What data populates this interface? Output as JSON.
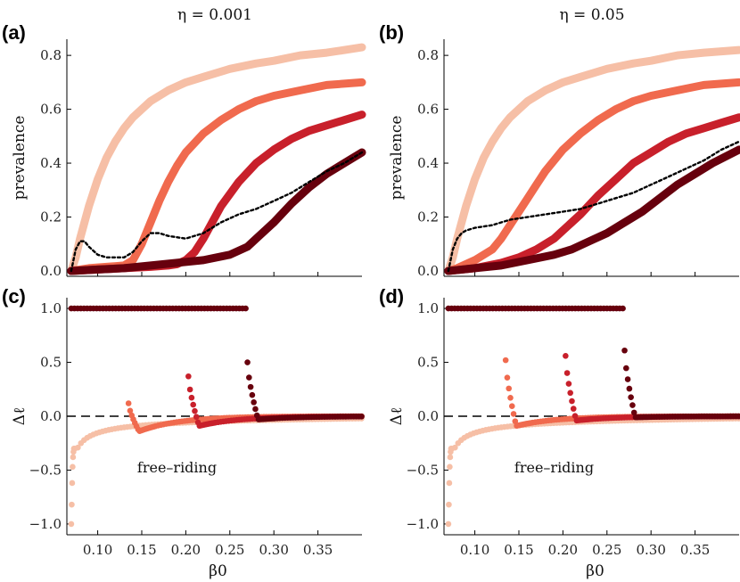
{
  "figure": {
    "columns": [
      {
        "title": "η = 0.001"
      },
      {
        "title": "η = 0.05"
      }
    ]
  },
  "palette": {
    "light": "#f6bfa6",
    "medium": "#f06a4e",
    "red": "#c8202b",
    "dark": "#67000d",
    "eq_line": "#000000"
  },
  "chart_data": [
    {
      "panel": "(a)",
      "type": "line",
      "column_title": "η = 0.001",
      "ylabel": "prevalence",
      "xlabel": "",
      "xlim": [
        0.065,
        0.4
      ],
      "ylim": [
        -0.02,
        0.86
      ],
      "yticks": [
        0.0,
        0.2,
        0.4,
        0.6,
        0.8
      ],
      "ytick_labels": [
        "0.0",
        "0.2",
        "0.4",
        "0.6",
        "0.8"
      ],
      "xticks": [
        0.1,
        0.15,
        0.2,
        0.25,
        0.3,
        0.35
      ],
      "show_xtick_labels": false,
      "series": [
        {
          "color": "light",
          "style": "thick",
          "x": [
            0.07,
            0.075,
            0.08,
            0.09,
            0.1,
            0.11,
            0.12,
            0.13,
            0.14,
            0.15,
            0.16,
            0.18,
            0.2,
            0.22,
            0.25,
            0.28,
            0.3,
            0.33,
            0.36,
            0.4
          ],
          "y": [
            0.0,
            0.05,
            0.12,
            0.24,
            0.34,
            0.42,
            0.48,
            0.53,
            0.57,
            0.6,
            0.63,
            0.67,
            0.7,
            0.72,
            0.75,
            0.77,
            0.78,
            0.8,
            0.81,
            0.83
          ]
        },
        {
          "color": "medium",
          "style": "thick",
          "x": [
            0.07,
            0.09,
            0.11,
            0.13,
            0.14,
            0.15,
            0.16,
            0.17,
            0.18,
            0.19,
            0.2,
            0.22,
            0.24,
            0.26,
            0.28,
            0.3,
            0.33,
            0.36,
            0.4
          ],
          "y": [
            0.0,
            0.01,
            0.015,
            0.02,
            0.04,
            0.1,
            0.18,
            0.26,
            0.33,
            0.39,
            0.44,
            0.51,
            0.56,
            0.6,
            0.63,
            0.65,
            0.67,
            0.69,
            0.7
          ]
        },
        {
          "color": "red",
          "style": "thick",
          "x": [
            0.07,
            0.1,
            0.13,
            0.16,
            0.18,
            0.19,
            0.2,
            0.21,
            0.22,
            0.23,
            0.24,
            0.26,
            0.28,
            0.3,
            0.32,
            0.34,
            0.36,
            0.38,
            0.4
          ],
          "y": [
            0.0,
            0.005,
            0.01,
            0.015,
            0.02,
            0.025,
            0.04,
            0.07,
            0.12,
            0.18,
            0.24,
            0.33,
            0.4,
            0.45,
            0.49,
            0.52,
            0.54,
            0.56,
            0.58
          ]
        },
        {
          "color": "dark",
          "style": "thick",
          "x": [
            0.07,
            0.1,
            0.13,
            0.16,
            0.19,
            0.22,
            0.25,
            0.27,
            0.28,
            0.3,
            0.32,
            0.34,
            0.36,
            0.38,
            0.4
          ],
          "y": [
            0.0,
            0.005,
            0.01,
            0.02,
            0.03,
            0.04,
            0.06,
            0.09,
            0.12,
            0.18,
            0.25,
            0.31,
            0.36,
            0.4,
            0.44
          ]
        },
        {
          "color": "eq_line",
          "style": "dotted",
          "x": [
            0.07,
            0.075,
            0.08,
            0.085,
            0.09,
            0.1,
            0.11,
            0.12,
            0.13,
            0.14,
            0.15,
            0.16,
            0.17,
            0.18,
            0.2,
            0.22,
            0.24,
            0.26,
            0.28,
            0.3,
            0.32,
            0.34,
            0.36,
            0.38,
            0.4
          ],
          "y": [
            0.0,
            0.08,
            0.11,
            0.11,
            0.09,
            0.06,
            0.05,
            0.05,
            0.05,
            0.07,
            0.11,
            0.14,
            0.14,
            0.13,
            0.12,
            0.14,
            0.18,
            0.21,
            0.23,
            0.26,
            0.29,
            0.33,
            0.37,
            0.4,
            0.44
          ]
        }
      ]
    },
    {
      "panel": "(b)",
      "type": "line",
      "column_title": "η = 0.05",
      "ylabel": "prevalence",
      "xlabel": "",
      "xlim": [
        0.065,
        0.4
      ],
      "ylim": [
        -0.02,
        0.86
      ],
      "yticks": [
        0.0,
        0.2,
        0.4,
        0.6,
        0.8
      ],
      "ytick_labels": [
        "0.0",
        "0.2",
        "0.4",
        "0.6",
        "0.8"
      ],
      "xticks": [
        0.1,
        0.15,
        0.2,
        0.25,
        0.3,
        0.35
      ],
      "show_xtick_labels": false,
      "series": [
        {
          "color": "light",
          "style": "thick",
          "x": [
            0.07,
            0.075,
            0.08,
            0.09,
            0.1,
            0.11,
            0.12,
            0.13,
            0.14,
            0.15,
            0.16,
            0.18,
            0.2,
            0.22,
            0.25,
            0.28,
            0.3,
            0.33,
            0.36,
            0.4
          ],
          "y": [
            0.0,
            0.05,
            0.12,
            0.24,
            0.34,
            0.42,
            0.48,
            0.53,
            0.57,
            0.6,
            0.63,
            0.67,
            0.7,
            0.72,
            0.75,
            0.77,
            0.78,
            0.8,
            0.81,
            0.82
          ]
        },
        {
          "color": "medium",
          "style": "thick",
          "x": [
            0.07,
            0.08,
            0.1,
            0.12,
            0.13,
            0.14,
            0.15,
            0.16,
            0.17,
            0.18,
            0.2,
            0.22,
            0.24,
            0.26,
            0.28,
            0.3,
            0.33,
            0.36,
            0.4
          ],
          "y": [
            0.0,
            0.01,
            0.04,
            0.08,
            0.12,
            0.17,
            0.22,
            0.27,
            0.32,
            0.37,
            0.45,
            0.51,
            0.56,
            0.6,
            0.63,
            0.65,
            0.67,
            0.69,
            0.7
          ]
        },
        {
          "color": "red",
          "style": "thick",
          "x": [
            0.07,
            0.1,
            0.13,
            0.15,
            0.17,
            0.19,
            0.2,
            0.21,
            0.22,
            0.24,
            0.26,
            0.28,
            0.3,
            0.32,
            0.34,
            0.36,
            0.38,
            0.4
          ],
          "y": [
            0.0,
            0.01,
            0.03,
            0.05,
            0.08,
            0.12,
            0.15,
            0.18,
            0.21,
            0.28,
            0.34,
            0.4,
            0.44,
            0.48,
            0.51,
            0.53,
            0.55,
            0.57
          ]
        },
        {
          "color": "dark",
          "style": "thick",
          "x": [
            0.07,
            0.1,
            0.13,
            0.16,
            0.19,
            0.21,
            0.23,
            0.25,
            0.27,
            0.29,
            0.31,
            0.33,
            0.35,
            0.37,
            0.4
          ],
          "y": [
            0.0,
            0.01,
            0.02,
            0.04,
            0.06,
            0.08,
            0.11,
            0.14,
            0.18,
            0.22,
            0.27,
            0.32,
            0.36,
            0.4,
            0.45
          ]
        },
        {
          "color": "eq_line",
          "style": "dotted",
          "x": [
            0.07,
            0.075,
            0.08,
            0.085,
            0.09,
            0.1,
            0.12,
            0.14,
            0.16,
            0.18,
            0.2,
            0.22,
            0.24,
            0.26,
            0.28,
            0.3,
            0.32,
            0.34,
            0.36,
            0.38,
            0.4
          ],
          "y": [
            0.0,
            0.08,
            0.12,
            0.14,
            0.15,
            0.16,
            0.17,
            0.19,
            0.2,
            0.21,
            0.22,
            0.23,
            0.25,
            0.27,
            0.29,
            0.32,
            0.35,
            0.38,
            0.41,
            0.45,
            0.48
          ]
        }
      ]
    },
    {
      "panel": "(c)",
      "type": "scatter",
      "ylabel": "Δℓ",
      "xlabel": "β0",
      "xlim": [
        0.065,
        0.4
      ],
      "ylim": [
        -1.1,
        1.1
      ],
      "yticks": [
        -1.0,
        -0.5,
        0.0,
        0.5,
        1.0
      ],
      "ytick_labels": [
        "−1.0",
        "−0.5",
        "0.0",
        "0.5",
        "1.0"
      ],
      "xticks": [
        0.1,
        0.15,
        0.2,
        0.25,
        0.3,
        0.35
      ],
      "xtick_labels": [
        "0.10",
        "0.15",
        "0.20",
        "0.25",
        "0.30",
        "0.35"
      ],
      "reference_line_y": 0.0,
      "annotation": {
        "text": "free–riding",
        "x": 0.19,
        "y": -0.48
      },
      "top_line": {
        "color": "dark",
        "y": 1.0,
        "x_from": 0.07,
        "x_to": 0.27
      },
      "series": [
        {
          "color": "light",
          "b0": 0.07,
          "peak": -1.0,
          "floor": -1.0,
          "end": 0.4
        },
        {
          "color": "medium",
          "b0": 0.135,
          "peak": 0.12,
          "floor": -0.14,
          "end": 0.4
        },
        {
          "color": "red",
          "b0": 0.203,
          "peak": 0.37,
          "floor": -0.09,
          "end": 0.4
        },
        {
          "color": "dark",
          "b0": 0.27,
          "peak": 0.5,
          "floor": -0.03,
          "end": 0.4
        }
      ]
    },
    {
      "panel": "(d)",
      "type": "scatter",
      "ylabel": "Δℓ",
      "xlabel": "β0",
      "xlim": [
        0.065,
        0.4
      ],
      "ylim": [
        -1.1,
        1.1
      ],
      "yticks": [
        -1.0,
        -0.5,
        0.0,
        0.5,
        1.0
      ],
      "ytick_labels": [
        "−1.0",
        "−0.5",
        "0.0",
        "0.5",
        "1.0"
      ],
      "xticks": [
        0.1,
        0.15,
        0.2,
        0.25,
        0.3,
        0.35
      ],
      "xtick_labels": [
        "0.10",
        "0.15",
        "0.20",
        "0.25",
        "0.30",
        "0.35"
      ],
      "reference_line_y": 0.0,
      "annotation": {
        "text": "free–riding",
        "x": 0.19,
        "y": -0.48
      },
      "top_line": {
        "color": "dark",
        "y": 1.0,
        "x_from": 0.07,
        "x_to": 0.27
      },
      "series": [
        {
          "color": "light",
          "b0": 0.07,
          "peak": -1.0,
          "floor": -1.0,
          "end": 0.4
        },
        {
          "color": "medium",
          "b0": 0.135,
          "peak": 0.52,
          "floor": -0.09,
          "end": 0.4
        },
        {
          "color": "red",
          "b0": 0.203,
          "peak": 0.56,
          "floor": -0.04,
          "end": 0.4
        },
        {
          "color": "dark",
          "b0": 0.27,
          "peak": 0.61,
          "floor": -0.01,
          "end": 0.4
        }
      ]
    }
  ]
}
